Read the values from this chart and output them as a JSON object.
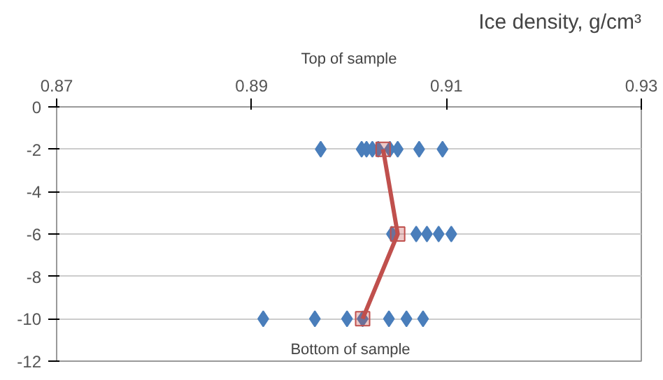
{
  "chart_data": {
    "type": "scatter",
    "title": "Ice density, g/cm³",
    "annotations": [
      "Top of sample",
      "Bottom of sample"
    ],
    "series": [
      {
        "color": "#4a7ebb",
        "marker": "diamond",
        "x": [
          0.8971,
          0.9013,
          0.9018,
          0.9024,
          0.903,
          0.9036,
          0.9042,
          0.905,
          0.9072,
          0.9096,
          0.9044,
          0.9069,
          0.908,
          0.9092,
          0.9105,
          0.8912,
          0.8965,
          0.8998,
          0.9014,
          0.9041,
          0.9059,
          0.9076
        ],
        "values": [
          -2,
          -2,
          -2,
          -2,
          -2,
          null,
          -2,
          -2,
          -2,
          -2,
          -6,
          -6,
          -6,
          -6,
          -6,
          -10,
          -10,
          -10,
          -10,
          -10,
          -10,
          -10
        ]
      },
      {
        "type": "line",
        "color": "#c0504d",
        "marker": "square",
        "x": [
          0.9035,
          0.905,
          0.9014
        ],
        "values": [
          -2,
          -6,
          -10
        ]
      }
    ],
    "xlim": [
      0.87,
      0.93
    ],
    "xticks": [
      0.87,
      0.89,
      0.91,
      0.93
    ],
    "ylim": [
      -12,
      0
    ],
    "yticks": [
      0,
      -2,
      -4,
      -6,
      -8,
      -10,
      -12
    ],
    "grid": "y"
  }
}
